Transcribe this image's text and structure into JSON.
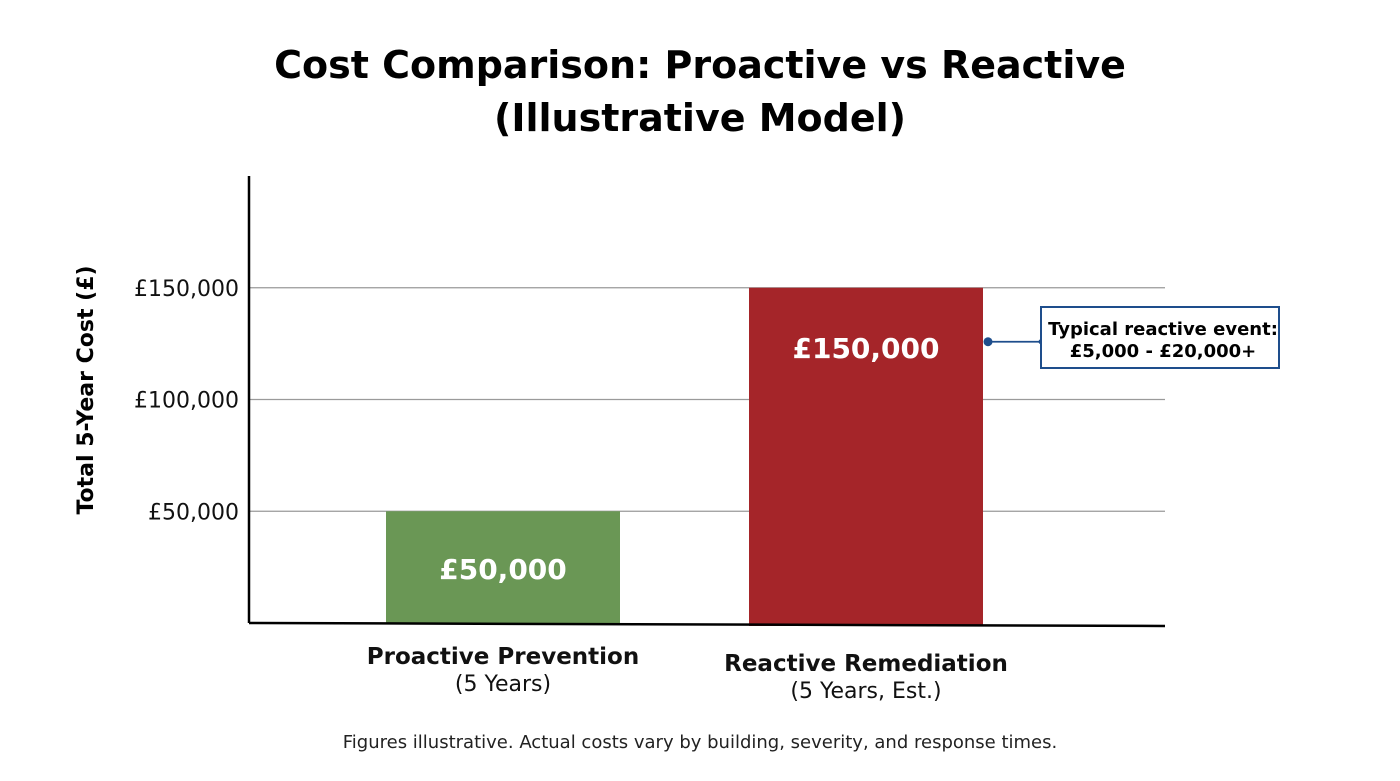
{
  "chart_data": {
    "type": "bar",
    "title_line1": "Cost Comparison: Proactive vs Reactive",
    "title_line2": "(Illustrative Model)",
    "ylabel": "Total 5-Year Cost (£)",
    "ylim": [
      0,
      200000
    ],
    "yticks": [
      {
        "value": 50000,
        "label": "£50,000"
      },
      {
        "value": 100000,
        "label": "£100,000"
      },
      {
        "value": 150000,
        "label": "£150,000"
      }
    ],
    "grid": true,
    "categories": [
      {
        "name": "Proactive Prevention",
        "sub": "(5 Years)"
      },
      {
        "name": "Reactive Remediation",
        "sub": "(5 Years, Est.)"
      }
    ],
    "values": [
      50000,
      150000
    ],
    "data_labels": [
      "£50,000",
      "£150,000"
    ],
    "colors": [
      "#6a9755",
      "#a52529"
    ],
    "annotation": {
      "line1": "Typical reactive event:",
      "line2": "£5,000 - £20,000+",
      "target_bar": 1,
      "color": "#1e4e8c"
    },
    "footnote": "Figures illustrative. Actual costs vary by building, severity, and response times."
  }
}
